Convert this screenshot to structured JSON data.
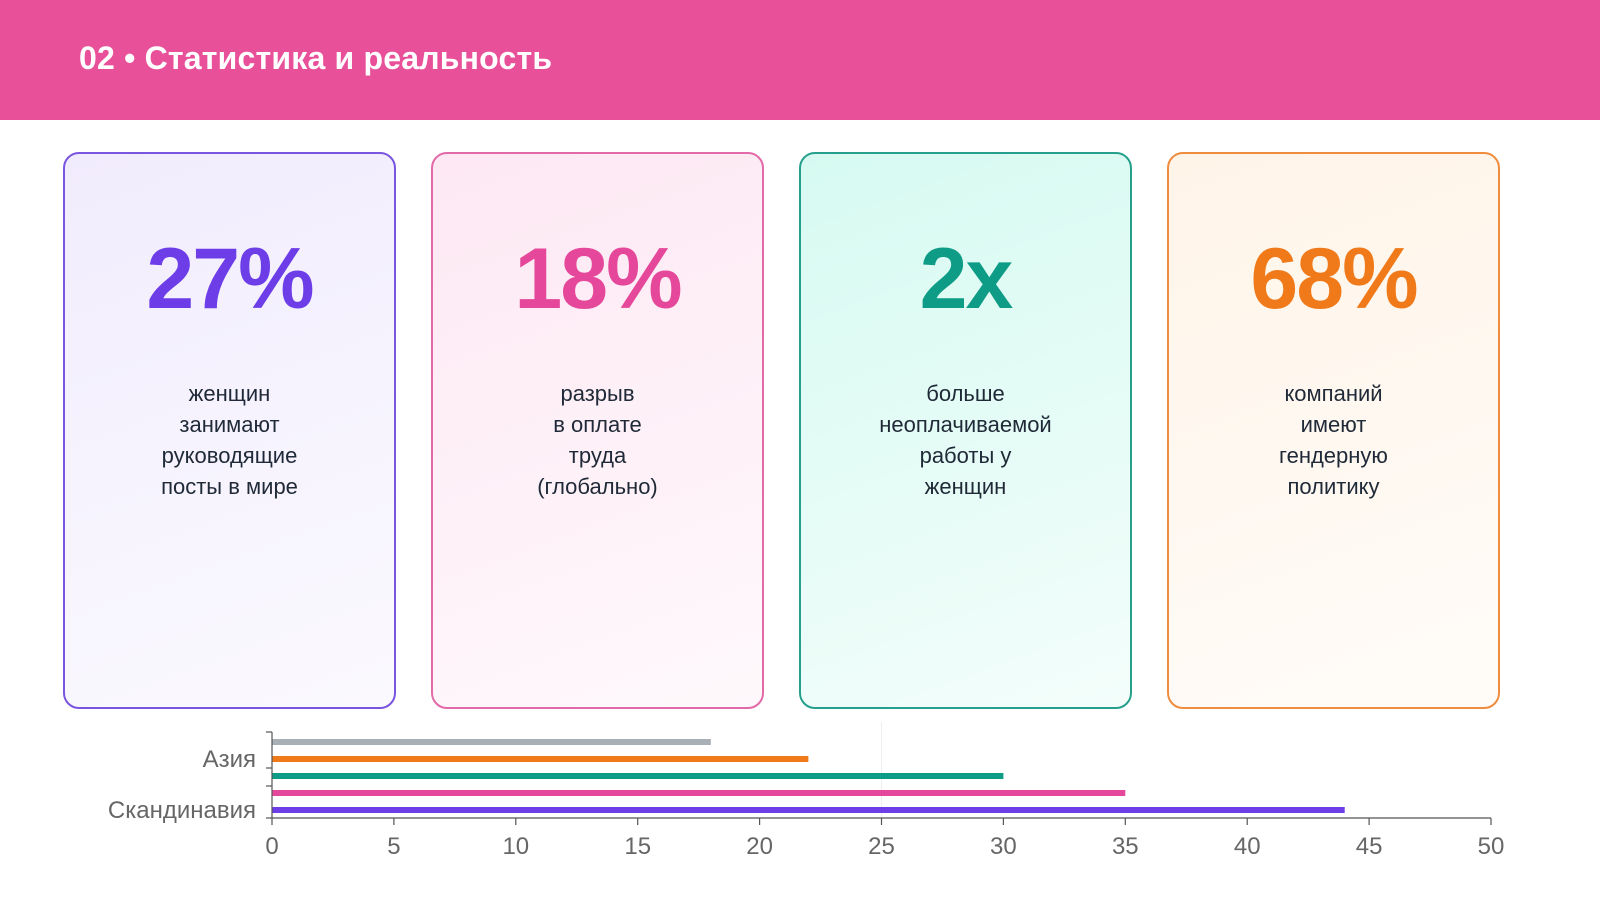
{
  "header": {
    "title": "02 • Статистика и реальность",
    "bg_color": "#e9509a"
  },
  "cards": [
    {
      "value": "27%",
      "lines": [
        "женщин",
        "занимают",
        "руководящие",
        "посты в мире"
      ],
      "color": "#6d3ee8",
      "border": "#7a55e0",
      "bg": "#f1ecfd"
    },
    {
      "value": "18%",
      "lines": [
        "разрыв",
        "в оплате",
        "труда",
        "(глобально)"
      ],
      "color": "#e5489a",
      "border": "#e36aa8",
      "bg": "#fde8f3"
    },
    {
      "value": "2x",
      "lines": [
        "больше",
        "неоплачиваемой",
        "работы у",
        "женщин"
      ],
      "color": "#0e9c86",
      "border": "#26a08c",
      "bg": "#d6faf1"
    },
    {
      "value": "68%",
      "lines": [
        "компаний",
        "имеют",
        "гендерную",
        "политику"
      ],
      "color": "#f07a1a",
      "border": "#ef8c3e",
      "bg": "#fff4e8"
    }
  ],
  "chart_data": {
    "type": "bar",
    "orientation": "horizontal",
    "categories": [
      "Скандинавия",
      "Азия"
    ],
    "series_colors": [
      "#6d3ee8",
      "#e5489a",
      "#0e9c86",
      "#f07a1a",
      "#a8b0b6"
    ],
    "bars": [
      {
        "value": 44,
        "color": "#6d3ee8"
      },
      {
        "value": 35,
        "color": "#e5489a"
      },
      {
        "value": 30,
        "color": "#0e9c86"
      },
      {
        "value": 22,
        "color": "#f07a1a"
      },
      {
        "value": 18,
        "color": "#a8b0b6"
      }
    ],
    "xlim": [
      0,
      50
    ],
    "xticks": [
      0,
      5,
      10,
      15,
      20,
      25,
      30,
      35,
      40,
      45,
      50
    ],
    "grid": false
  }
}
